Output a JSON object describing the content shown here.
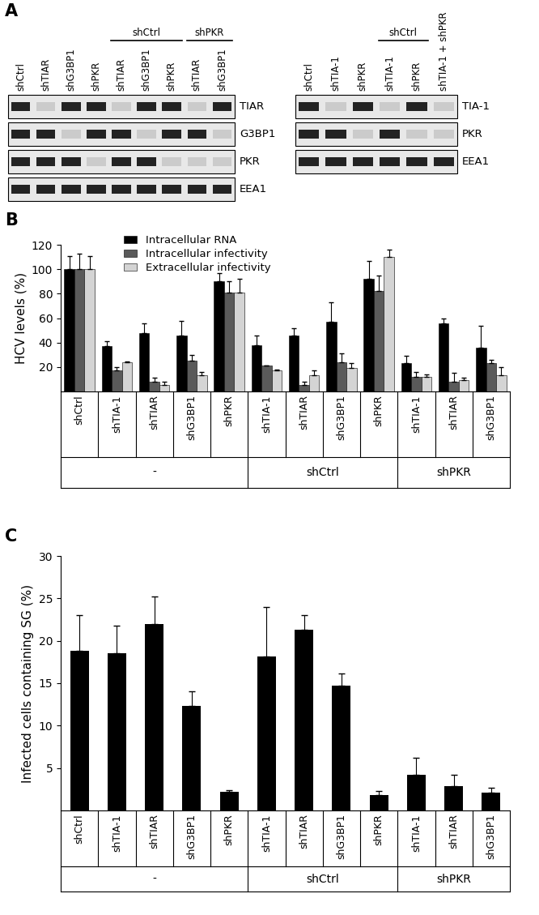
{
  "panel_labels": [
    "A",
    "B",
    "C"
  ],
  "blots": [
    {
      "lanes": [
        "shCtrl",
        "shTIAR",
        "shG3BP1",
        "shPKR",
        "shTIAR",
        "shG3BP1",
        "shPKR",
        "shTIAR",
        "shG3BP1"
      ],
      "lane_groups": [
        null,
        null,
        null,
        null,
        "shCtrl",
        "shCtrl",
        "shCtrl",
        "shPKR",
        "shPKR"
      ],
      "rows": [
        "TIAR",
        "G3BP1",
        "PKR",
        "EEA1"
      ]
    },
    {
      "lanes": [
        "shCtrl",
        "shTIA-1",
        "shPKR",
        "shTIA-1",
        "shPKR",
        "shTIA-1 + shPKR"
      ],
      "lane_groups": [
        null,
        null,
        null,
        "shCtrl",
        "shCtrl",
        null
      ],
      "rows": [
        "TIA-1",
        "PKR",
        "EEA1"
      ]
    }
  ],
  "chart_data": [
    {
      "type": "bar",
      "ylabel": "HCV levels (%)",
      "categories": [
        "shCtrl",
        "shTIA-1",
        "shTIAR",
        "shG3BP1",
        "shPKR",
        "shTIA-1",
        "shTIAR",
        "shG3BP1",
        "shPKR",
        "shTIA-1",
        "shTIAR",
        "shG3BP1"
      ],
      "groups": [
        "-",
        "-",
        "-",
        "-",
        "-",
        "shCtrl",
        "shCtrl",
        "shCtrl",
        "shCtrl",
        "shPKR",
        "shPKR",
        "shPKR"
      ],
      "ylim": [
        0,
        120
      ],
      "yticks": [
        20,
        40,
        60,
        80,
        100,
        120
      ],
      "legend": "upper left",
      "series": [
        {
          "name": "Intracellular RNA",
          "color": "#000000",
          "values": [
            100,
            37,
            48,
            46,
            90,
            38,
            46,
            57,
            92,
            23,
            56,
            36
          ],
          "errors": [
            11,
            4,
            8,
            12,
            7,
            8,
            6,
            16,
            15,
            6,
            4,
            18
          ]
        },
        {
          "name": "Intracellular infectivity",
          "color": "#5a5a5a",
          "values": [
            100,
            17,
            8,
            25,
            81,
            21,
            5,
            24,
            82,
            12,
            8,
            23
          ],
          "errors": [
            13,
            3,
            3,
            5,
            9,
            0.5,
            3,
            7,
            13,
            4,
            7,
            3
          ]
        },
        {
          "name": "Extracellular infectivity",
          "color": "#d4d4d4",
          "values": [
            100,
            24,
            5,
            13,
            81,
            17,
            13,
            19,
            110,
            12,
            9,
            13
          ],
          "errors": [
            11,
            0.5,
            3,
            3,
            11,
            1,
            4,
            4,
            6,
            2,
            2,
            7
          ]
        }
      ]
    },
    {
      "type": "bar",
      "ylabel": "Infected cells containing SG (%)",
      "categories": [
        "shCtrl",
        "shTIA-1",
        "shTIAR",
        "shG3BP1",
        "shPKR",
        "shTIA-1",
        "shTIAR",
        "shG3BP1",
        "shPKR",
        "shTIA-1",
        "shTIAR",
        "shG3BP1"
      ],
      "groups": [
        "-",
        "-",
        "-",
        "-",
        "-",
        "shCtrl",
        "shCtrl",
        "shCtrl",
        "shCtrl",
        "shPKR",
        "shPKR",
        "shPKR"
      ],
      "ylim": [
        0,
        30
      ],
      "yticks": [
        5,
        10,
        15,
        20,
        25,
        30
      ],
      "color": "#000000",
      "values": [
        18.8,
        18.5,
        22,
        12.3,
        2.2,
        18.2,
        21.3,
        14.7,
        1.8,
        4.2,
        2.9,
        2.1
      ],
      "errors": [
        4.2,
        3.3,
        3.2,
        1.7,
        0.2,
        5.8,
        1.7,
        1.4,
        0.5,
        2.0,
        1.3,
        0.6
      ]
    }
  ]
}
